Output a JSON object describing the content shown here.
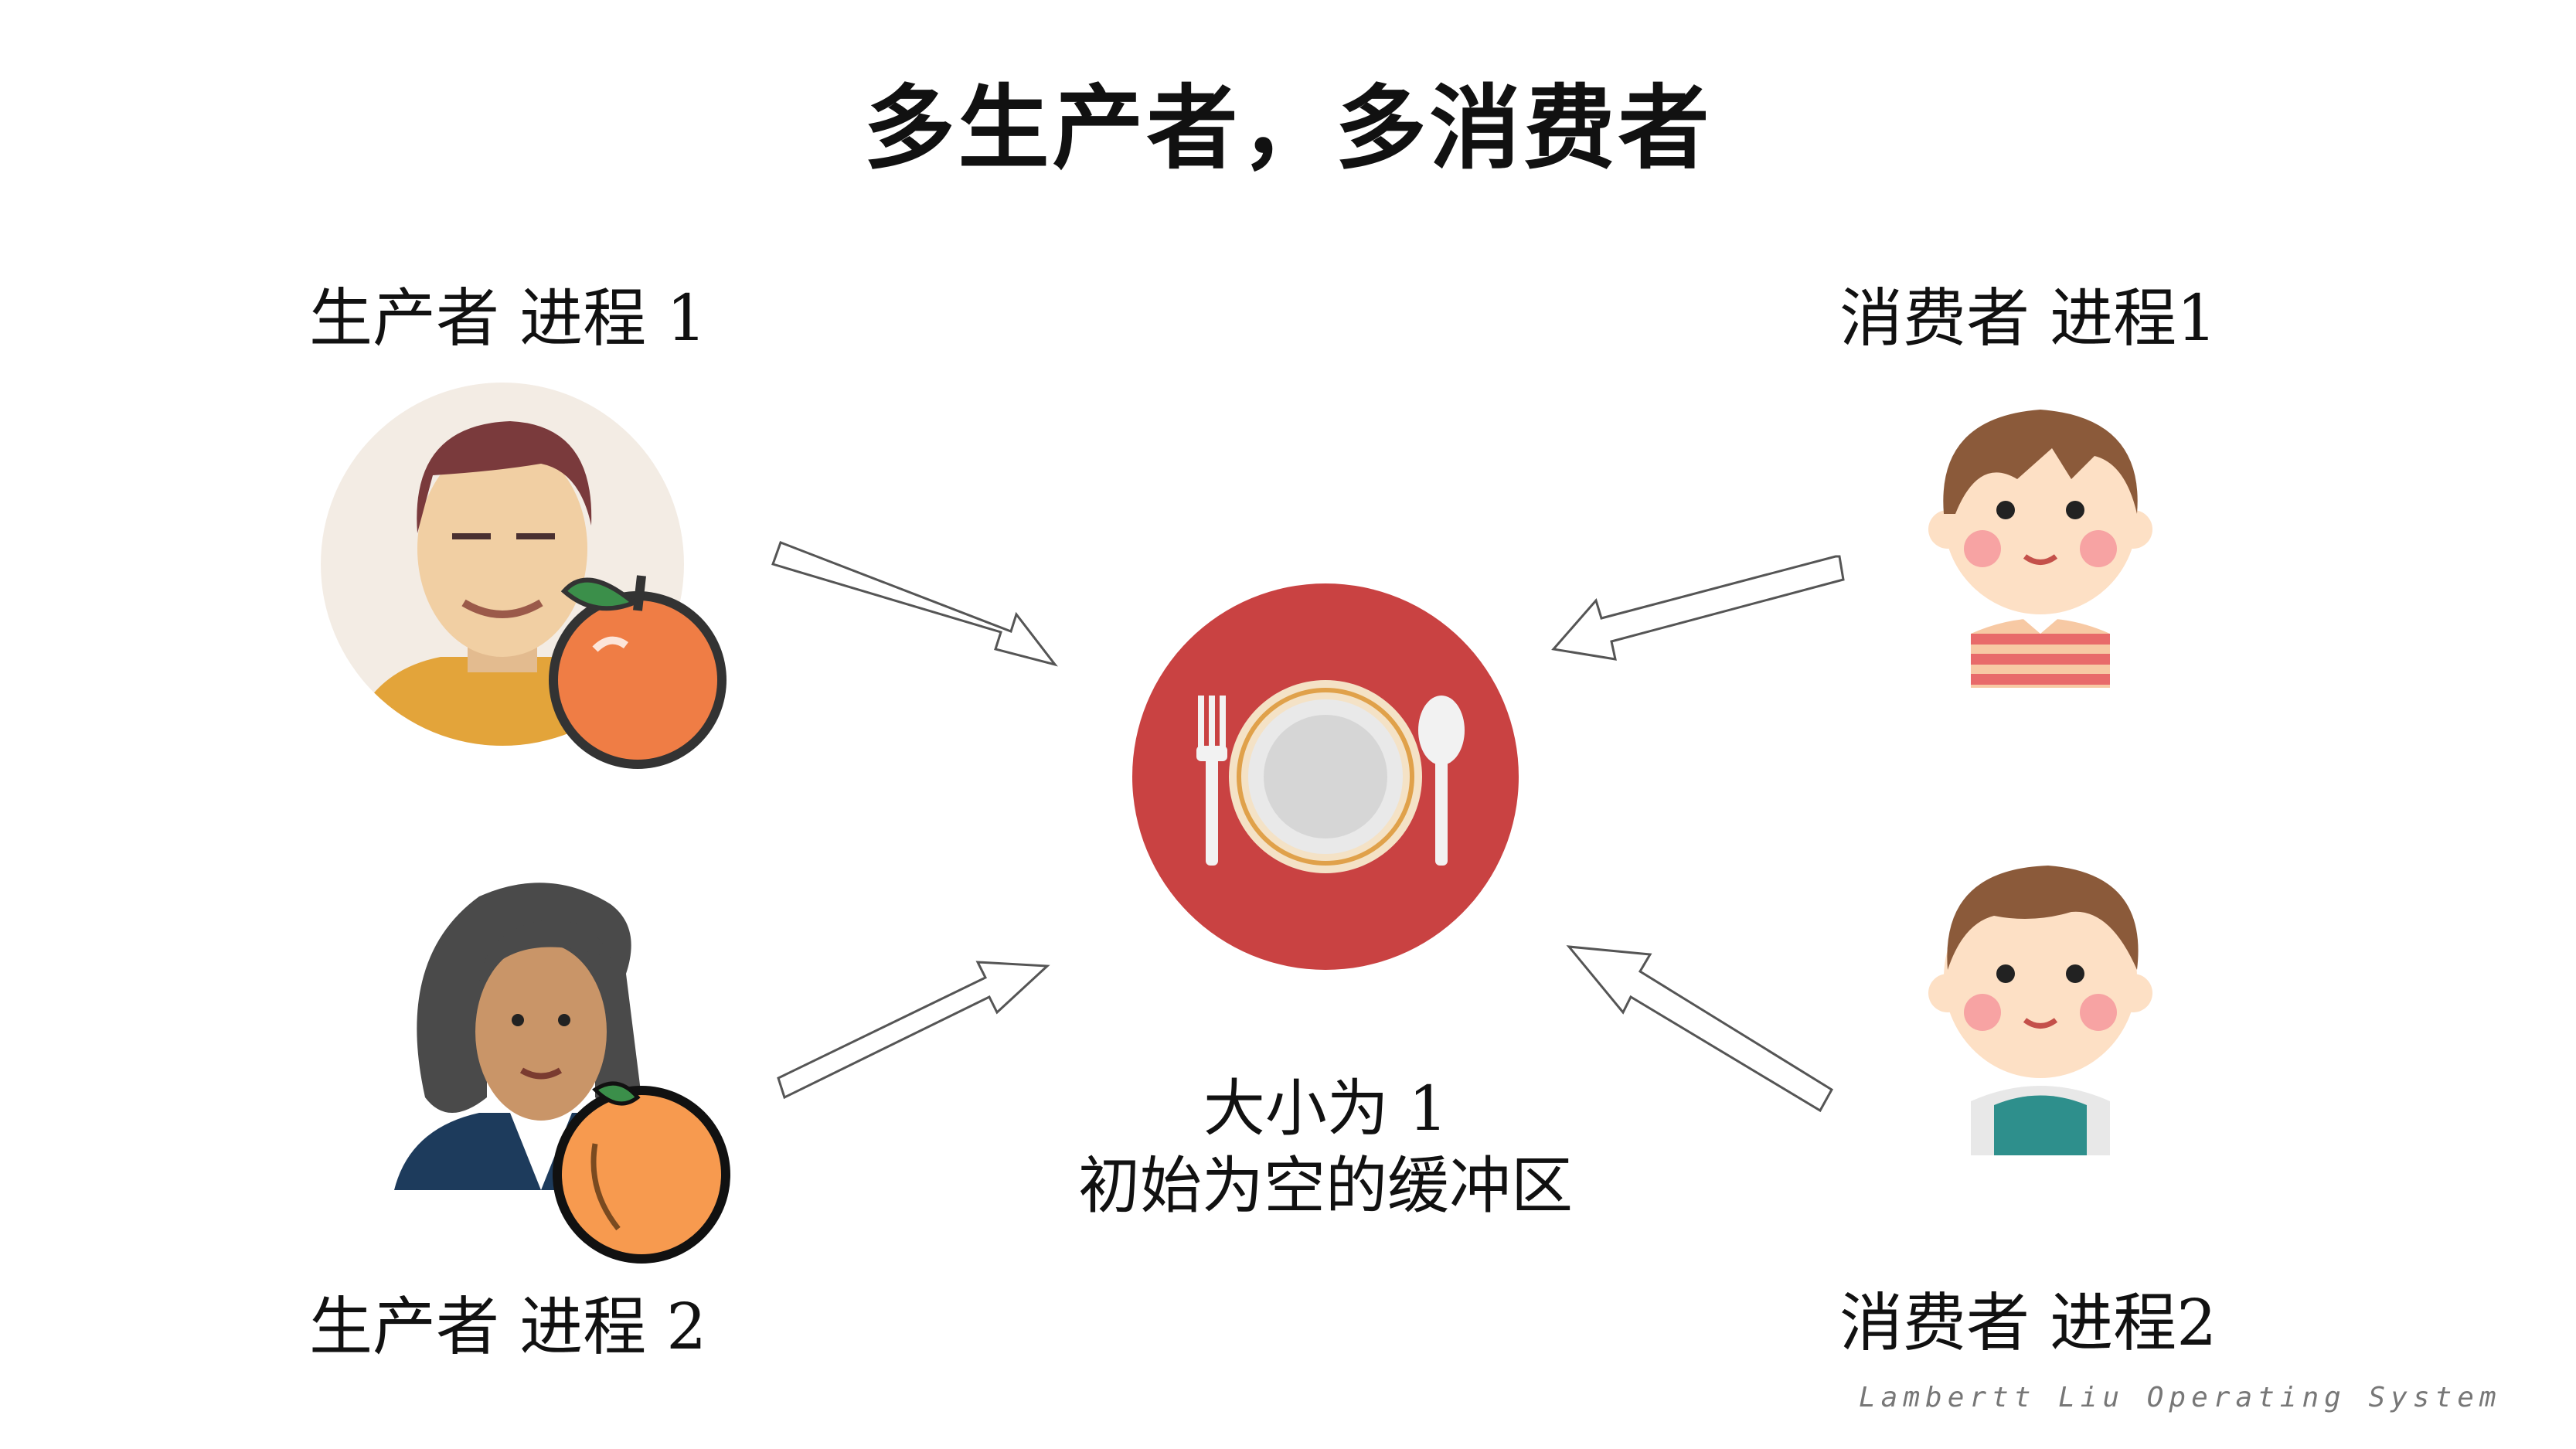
{
  "title": "多生产者，多消费者",
  "producers": [
    {
      "label": "生产者  进程  1",
      "icon": "man-with-apple-icon"
    },
    {
      "label": "生产者  进程  2",
      "icon": "woman-with-orange-icon"
    }
  ],
  "consumers": [
    {
      "label": "消费者  进程1",
      "icon": "boy-striped-shirt-icon"
    },
    {
      "label": "消费者  进程2",
      "icon": "boy-vest-icon"
    }
  ],
  "buffer": {
    "icon": "plate-fork-spoon-icon",
    "caption_line1": "大小为  1",
    "caption_line2": "初始为空的缓冲区"
  },
  "footer": "Lambertt Liu    Operating System",
  "colors": {
    "plate_red": "#c94242",
    "apple": "#ef7d45",
    "orange": "#f79a4f",
    "cheek": "#f7a3a3"
  }
}
